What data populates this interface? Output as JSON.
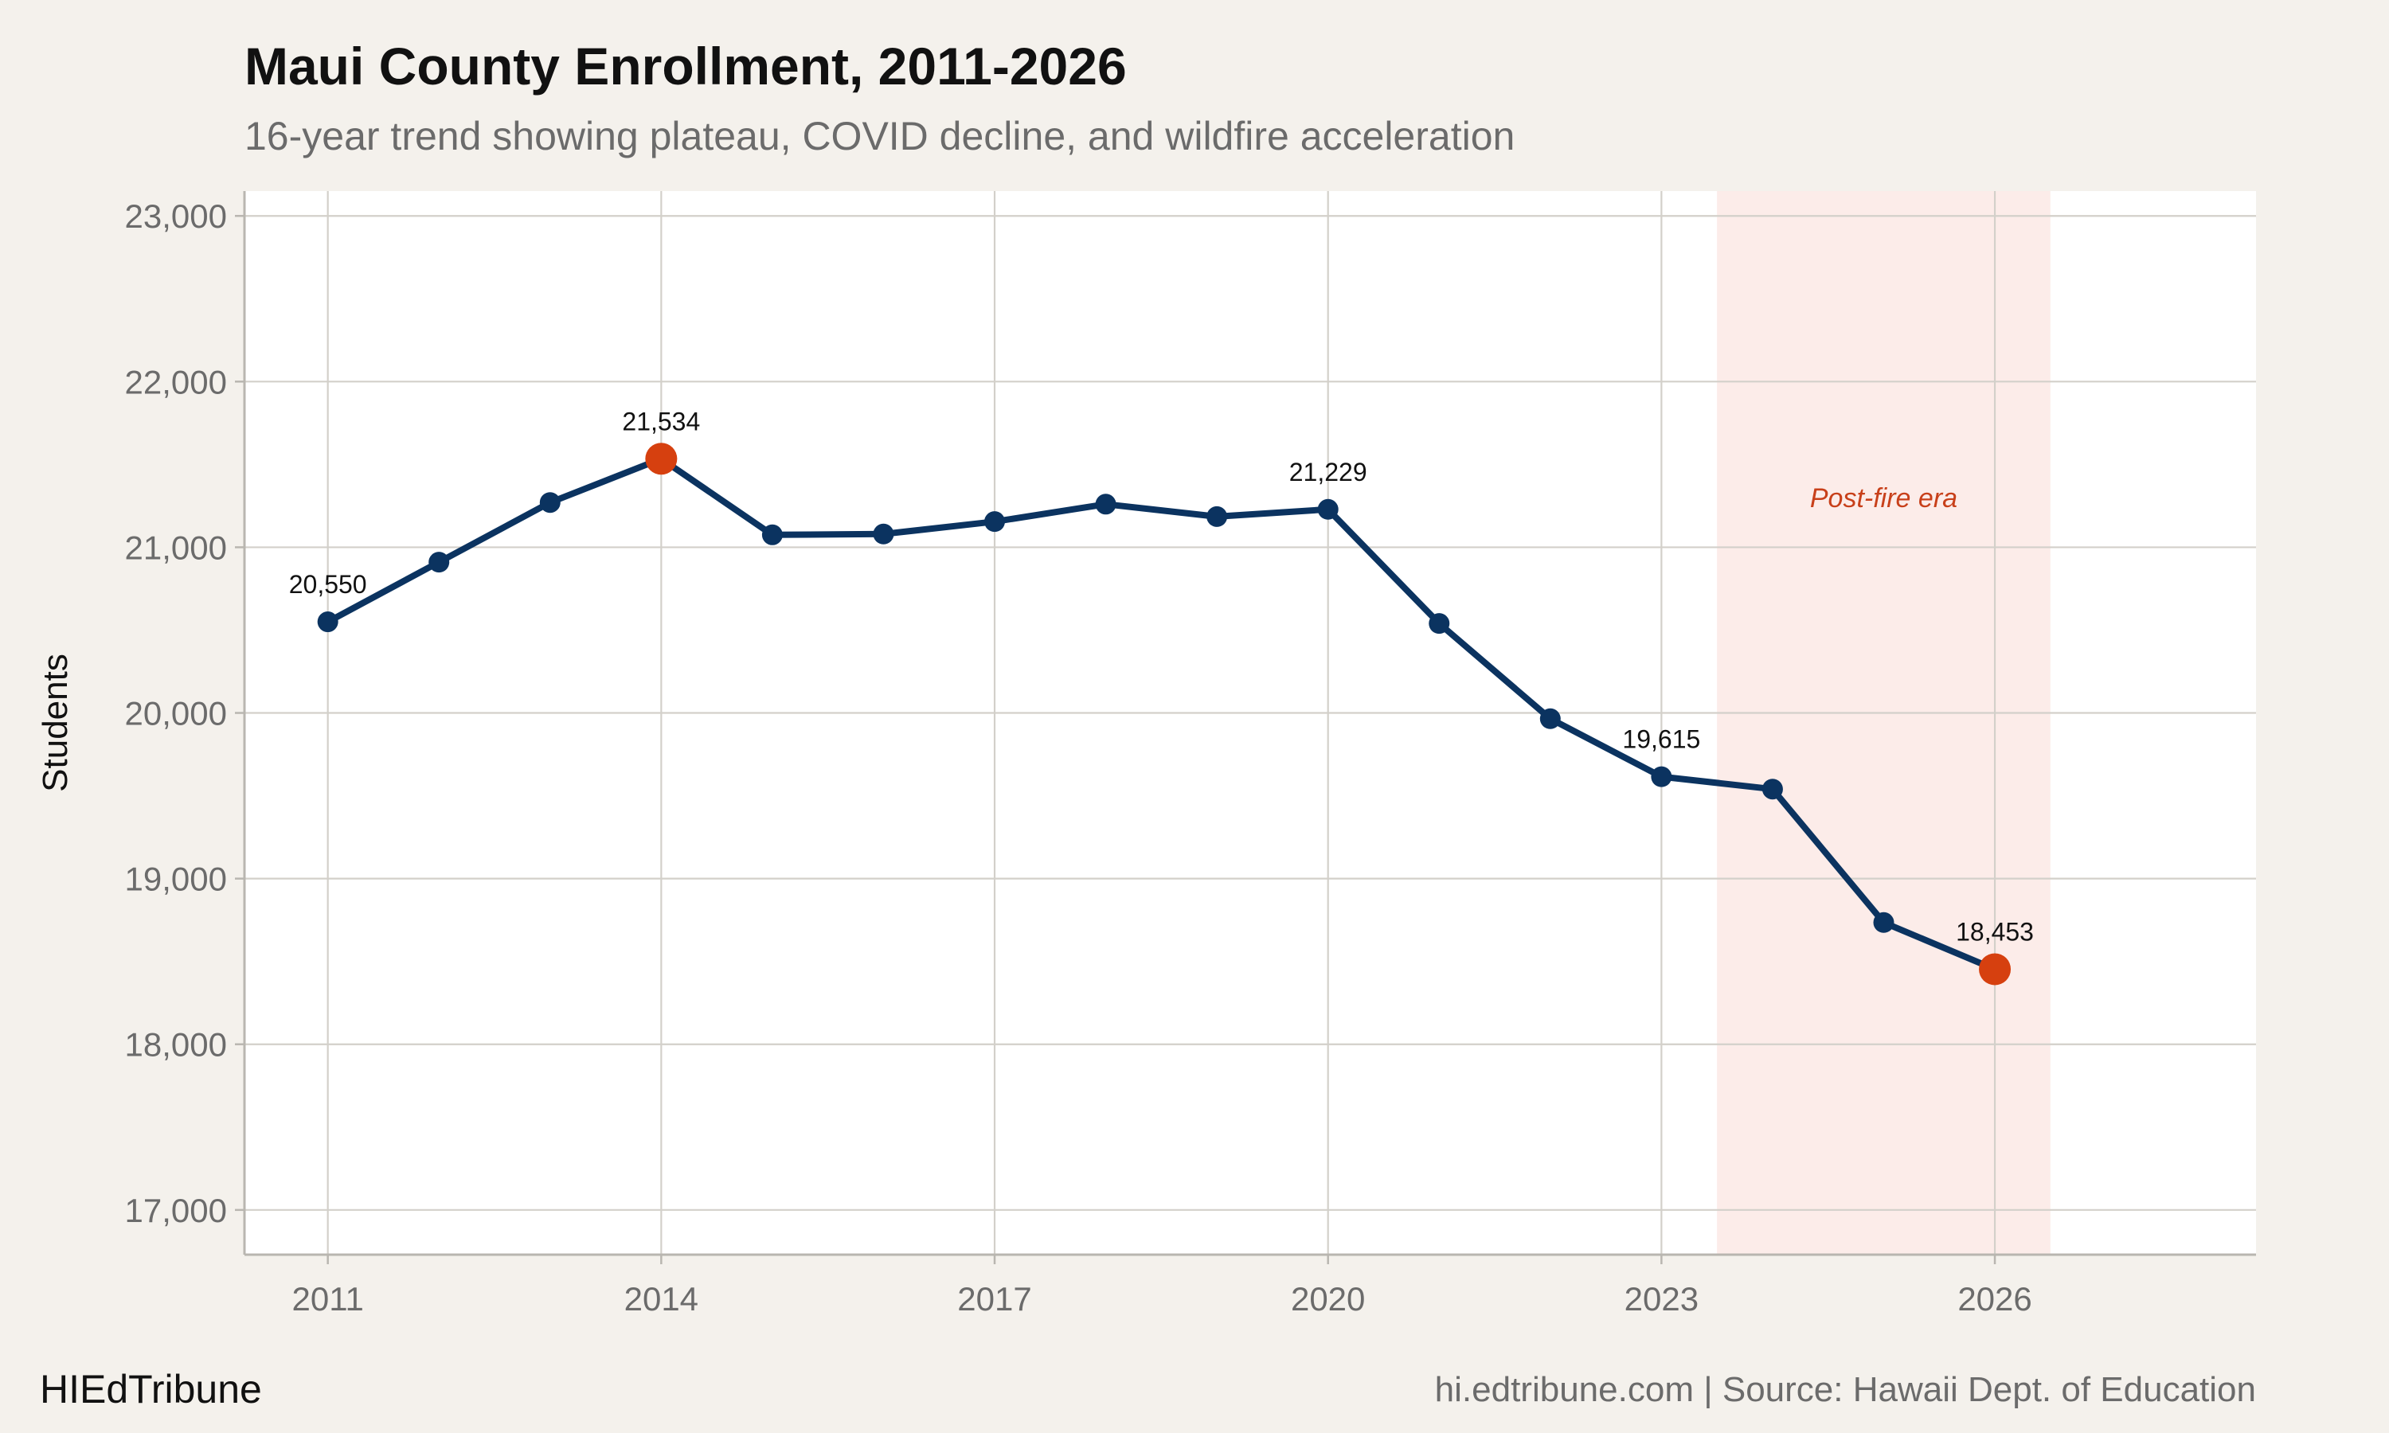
{
  "colors": {
    "background": "#f4f1ec",
    "panel": "#ffffff",
    "grid": "#d3d0ca",
    "line": "#0b3360",
    "highlight": "#d6400f",
    "shade": "#fcece9",
    "annotation": "#c8401a"
  },
  "chart_data": {
    "type": "line",
    "title": "Maui County Enrollment, 2011-2026",
    "subtitle": "16-year trend showing plateau, COVID decline, and wildfire acceleration",
    "xlabel": "",
    "ylabel": "Students",
    "x": [
      2011,
      2012,
      2013,
      2014,
      2015,
      2016,
      2017,
      2018,
      2019,
      2020,
      2021,
      2022,
      2023,
      2024,
      2025,
      2026
    ],
    "series": [
      {
        "values": [
          20550,
          20910,
          21270,
          21534,
          21075,
          21080,
          21155,
          21260,
          21185,
          21229,
          20540,
          19965,
          19615,
          19540,
          18735,
          18453
        ]
      }
    ],
    "highlighted_points": [
      2014,
      2026
    ],
    "data_labels": [
      {
        "x": 2011,
        "text": "20,550"
      },
      {
        "x": 2014,
        "text": "21,534"
      },
      {
        "x": 2020,
        "text": "21,229"
      },
      {
        "x": 2023,
        "text": "19,615"
      },
      {
        "x": 2026,
        "text": "18,453"
      }
    ],
    "xlim": [
      2010.25,
      2028.35
    ],
    "ylim": [
      16730,
      23150
    ],
    "x_ticks": [
      2011,
      2014,
      2017,
      2020,
      2023,
      2026
    ],
    "x_tick_labels": [
      "2011",
      "2014",
      "2017",
      "2020",
      "2023",
      "2026"
    ],
    "y_ticks": [
      17000,
      18000,
      19000,
      20000,
      21000,
      22000,
      23000
    ],
    "y_tick_labels": [
      "17,000",
      "18,000",
      "19,000",
      "20,000",
      "21,000",
      "22,000",
      "23,000"
    ],
    "shaded_region": {
      "x_start": 2023.5,
      "x_end": 2026.5,
      "label": "Post-fire era",
      "label_y": 21300
    },
    "grid": true
  },
  "footer": {
    "brand": "HIEdTribune",
    "source": "hi.edtribune.com | Source: Hawaii Dept. of Education"
  }
}
